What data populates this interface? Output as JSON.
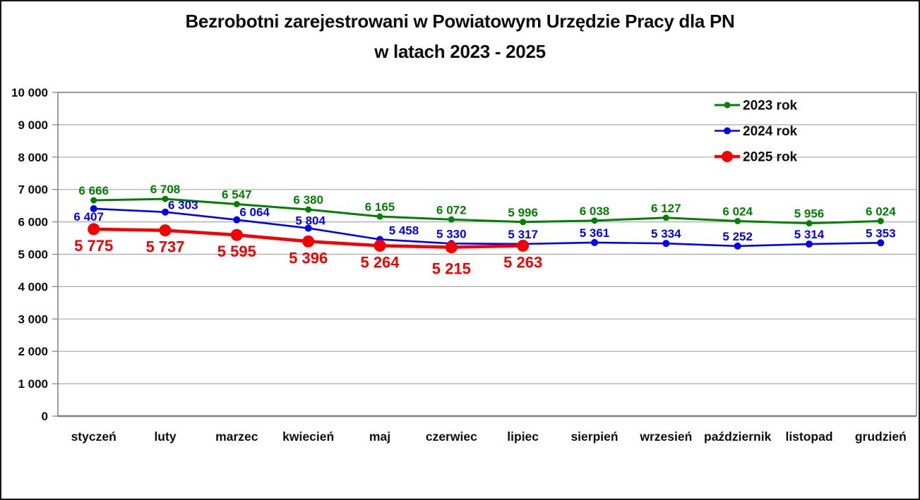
{
  "title": {
    "line1": "Bezrobotni zarejestrowani w Powiatowym Urzędzie Pracy dla PN",
    "line2": "w latach 2023 - 2025"
  },
  "chart_data": {
    "type": "line",
    "title": "Bezrobotni zarejestrowani w Powiatowym Urzędzie Pracy dla PN w latach 2023 - 2025",
    "categories": [
      "styczeń",
      "luty",
      "marzec",
      "kwiecień",
      "maj",
      "czerwiec",
      "lipiec",
      "sierpień",
      "wrzesień",
      "październik",
      "listopad",
      "grudzień"
    ],
    "xlabel": "",
    "ylabel": "",
    "ylim": [
      0,
      10000
    ],
    "grid": true,
    "legend_position": "top-right",
    "y_axis": {
      "min": 0,
      "max": 10000,
      "step": 1000,
      "tick_labels": [
        "0",
        "1 000",
        "2 000",
        "3 000",
        "4 000",
        "5 000",
        "6 000",
        "7 000",
        "8 000",
        "9 000",
        "10 000"
      ]
    },
    "series": [
      {
        "name": "2023 rok",
        "color": "#008000",
        "values": [
          6666,
          6708,
          6547,
          6380,
          6165,
          6072,
          5996,
          6038,
          6127,
          6024,
          5956,
          6024
        ],
        "labels": [
          "6 666",
          "6 708",
          "6 547",
          "6 380",
          "6 165",
          "6 072",
          "5 996",
          "6 038",
          "6 127",
          "6 024",
          "5 956",
          "6 024"
        ]
      },
      {
        "name": "2024 rok",
        "color": "#0000f5",
        "values": [
          6407,
          6303,
          6064,
          5804,
          5458,
          5330,
          5317,
          5361,
          5334,
          5252,
          5314,
          5353
        ],
        "labels": [
          "6 407",
          "6 303",
          "6 064",
          "5 804",
          "5 458",
          "5 330",
          "5 317",
          "5 361",
          "5 334",
          "5 252",
          "5 314",
          "5 353"
        ]
      },
      {
        "name": "2025 rok",
        "color": "#f50000",
        "values": [
          5775,
          5737,
          5595,
          5396,
          5264,
          5215,
          5263
        ],
        "labels": [
          "5 775",
          "5 737",
          "5 595",
          "5 396",
          "5 264",
          "5 215",
          "5 263"
        ]
      }
    ]
  },
  "colors": {
    "gridline": "#a8a8a8",
    "plot_border": "#7f7f7f",
    "text": "#0d0d0d"
  }
}
